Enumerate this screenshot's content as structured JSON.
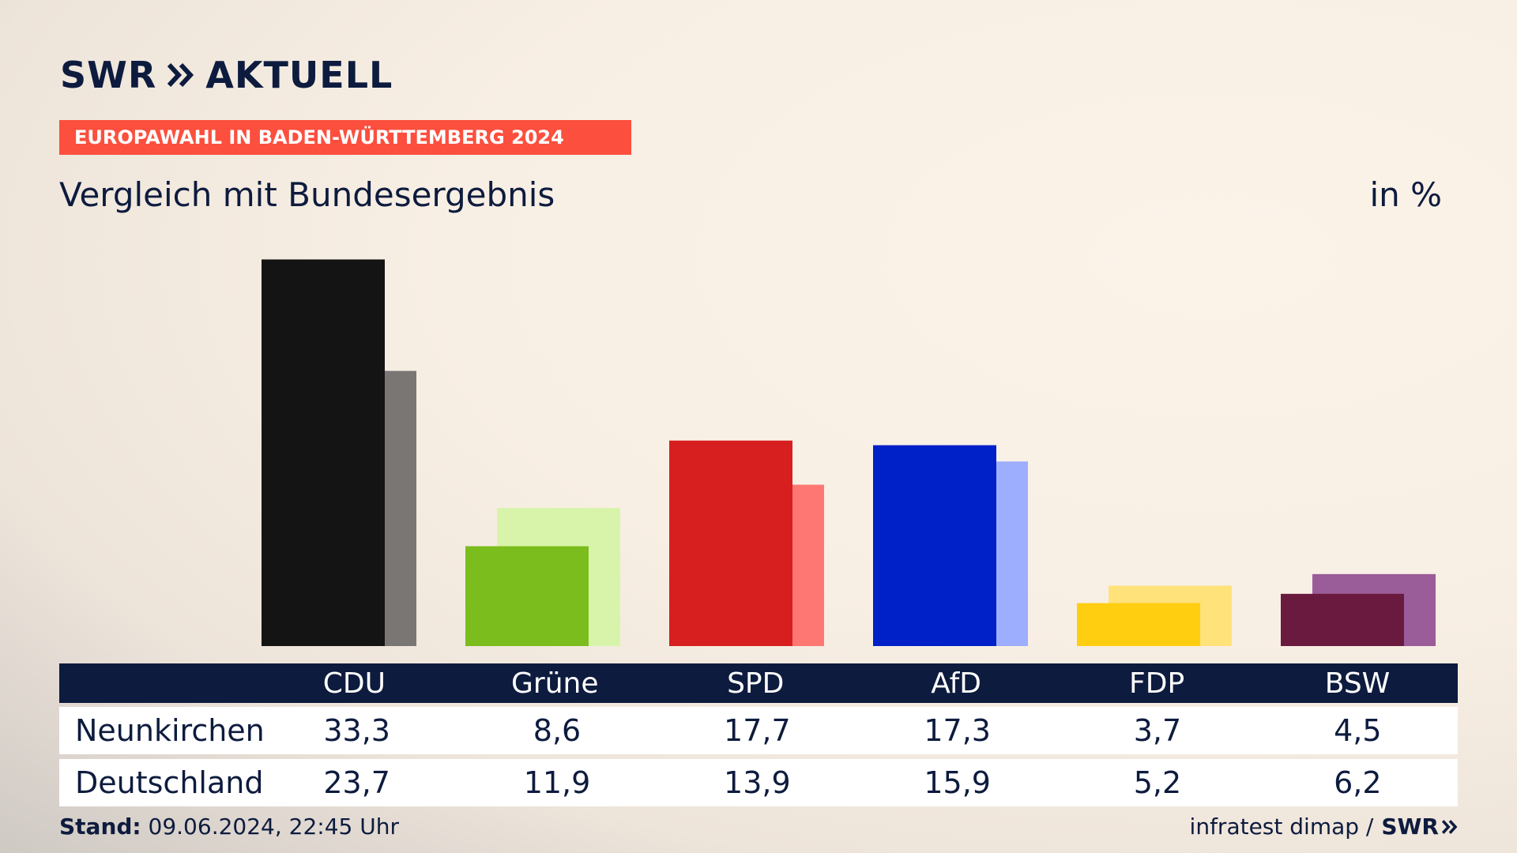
{
  "brand": {
    "name": "SWR",
    "product": "AKTUELL"
  },
  "banner": {
    "label": "EUROPAWAHL IN BADEN-WÜRTTEMBERG 2024"
  },
  "subtitle": "Vergleich mit Bundesergebnis",
  "unit": "in %",
  "chart_data": {
    "type": "bar",
    "categories": [
      "CDU",
      "Grüne",
      "SPD",
      "AfD",
      "FDP",
      "BSW"
    ],
    "series": [
      {
        "name": "Neunkirchen",
        "values": [
          33.3,
          8.6,
          17.7,
          17.3,
          3.7,
          4.5
        ]
      },
      {
        "name": "Deutschland",
        "values": [
          23.7,
          11.9,
          13.9,
          15.9,
          5.2,
          6.2
        ]
      }
    ],
    "colors_primary": [
      "#141414",
      "#7abd1c",
      "#d71f1f",
      "#0020c8",
      "#ffce10",
      "#6b1a3f"
    ],
    "colors_secondary": [
      "#7a7674",
      "#d8f4aa",
      "#ff7772",
      "#9daeff",
      "#ffe27a",
      "#9b5c9a"
    ],
    "ylim": [
      0,
      35
    ]
  },
  "table": {
    "rows": [
      {
        "label": "Neunkirchen",
        "values": [
          "33,3",
          "8,6",
          "17,7",
          "17,3",
          "3,7",
          "4,5"
        ]
      },
      {
        "label": "Deutschland",
        "values": [
          "23,7",
          "11,9",
          "13,9",
          "15,9",
          "5,2",
          "6,2"
        ]
      }
    ]
  },
  "footer": {
    "stand_label": "Stand:",
    "stand_value": "09.06.2024, 22:45 Uhr",
    "source": "infratest dimap /",
    "source_brand": "SWR"
  }
}
